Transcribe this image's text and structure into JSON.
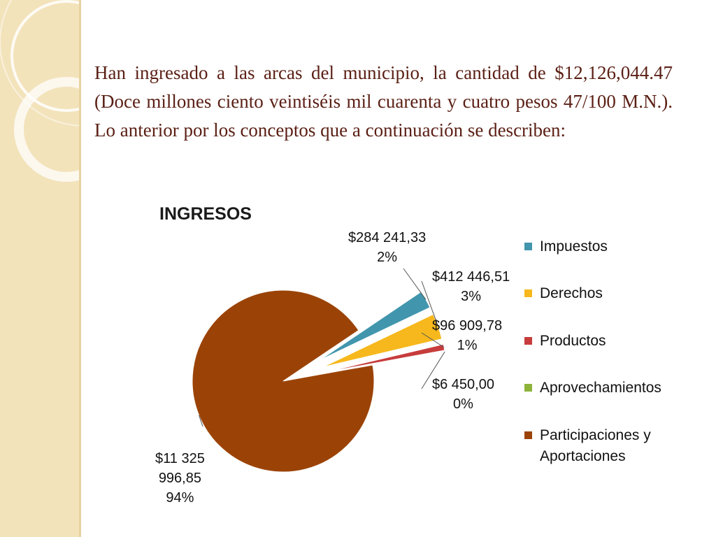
{
  "slide": {
    "text": "Han ingresado a las arcas del municipio, la cantidad de $12,126,044.47 (Doce millones ciento veintiséis mil cuarenta y cuatro pesos 47/100 M.N.). Lo anterior por los conceptos que a continuación se describen:"
  },
  "chart_data": {
    "type": "pie",
    "title": "INGRESOS",
    "legend_position": "right",
    "slices": [
      {
        "name": "Impuestos",
        "value": 284241.33,
        "value_label": "$284 241,33",
        "percent_label": "2%",
        "color": "#4196ad"
      },
      {
        "name": "Derechos",
        "value": 412446.51,
        "value_label": "$412 446,51",
        "percent_label": "3%",
        "color": "#f6b81c"
      },
      {
        "name": "Productos",
        "value": 96909.78,
        "value_label": "$96 909,78",
        "percent_label": "1%",
        "color": "#c73c3c"
      },
      {
        "name": "Aprovechamientos",
        "value": 6450.0,
        "value_label": "$6 450,00",
        "percent_label": "0%",
        "color": "#8db33a"
      },
      {
        "name": "Participaciones y Aportaciones",
        "value": 11325996.85,
        "value_label_lines": [
          "$11 325",
          "996,85"
        ],
        "percent_label": "94%",
        "color": "#9b4307"
      }
    ]
  }
}
